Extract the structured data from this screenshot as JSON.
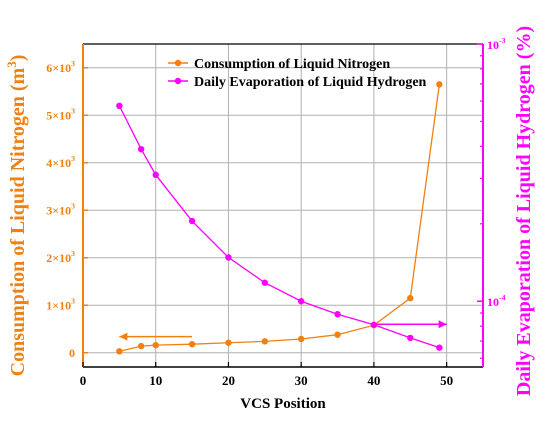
{
  "chart_data": {
    "type": "line",
    "x": [
      5,
      8,
      10,
      15,
      20,
      25,
      30,
      35,
      40,
      45,
      49
    ],
    "xlabel": "VCS Position",
    "xlim": [
      0,
      55
    ],
    "xticks": [
      0,
      10,
      20,
      30,
      40,
      50
    ],
    "x_tick_labels": [
      "0",
      "10",
      "20",
      "30",
      "40",
      "50"
    ],
    "grid": true,
    "legend_position": "top-center",
    "series": [
      {
        "name": "Consumption of Liquid Nitrogen",
        "axis": "left",
        "color": "#F08010",
        "values": [
          30,
          140,
          160,
          180,
          210,
          240,
          290,
          380,
          580,
          1150,
          5650
        ]
      },
      {
        "name": "Daily Evaporation of Liquid Hydrogen",
        "axis": "right",
        "color": "#FF00FF",
        "values": [
          0.000575,
          0.00039,
          0.00031,
          0.000205,
          0.000148,
          0.000118,
          0.0001,
          8.9e-05,
          8.1e-05,
          7.2e-05,
          6.6e-05
        ]
      }
    ],
    "y_left": {
      "label": "Consumption of Liquid Nitrogen (m",
      "label_sup": "3",
      "label_end": ")",
      "ylim": [
        -300,
        6500
      ],
      "color": "#F08010",
      "ticks": [
        0,
        1000,
        2000,
        3000,
        4000,
        5000,
        6000
      ],
      "tick_labels": [
        "0",
        "1×10",
        "2×10",
        "3×10",
        "4×10",
        "5×10",
        "6×10"
      ],
      "tick_sups": [
        "",
        "3",
        "3",
        "3",
        "3",
        "3",
        "3"
      ]
    },
    "y_right": {
      "label": "Daily Evaporation of Liquid Hydrogen (%)",
      "scale": "log",
      "ylim": [
        5.55e-05,
        0.001
      ],
      "color": "#FF00FF",
      "labeled_ticks": [
        0.0001,
        0.001
      ],
      "tick_labels": [
        "10",
        "10"
      ],
      "tick_sups": [
        "-4",
        "-3"
      ],
      "minor_ticks": [
        6e-05,
        7e-05,
        8e-05,
        9e-05,
        0.0002,
        0.0003,
        0.0004,
        0.0005,
        0.0006,
        0.0007,
        0.0008,
        0.0009
      ]
    },
    "annotations": [
      {
        "type": "arrow",
        "direction": "left",
        "points_to": "left axis",
        "color": "#F08010",
        "x": [
          15,
          5
        ],
        "y_left": 340
      },
      {
        "type": "arrow",
        "direction": "right",
        "points_to": "right axis",
        "color": "#FF00FF",
        "x": [
          40,
          50
        ],
        "y_left": 600
      }
    ]
  }
}
